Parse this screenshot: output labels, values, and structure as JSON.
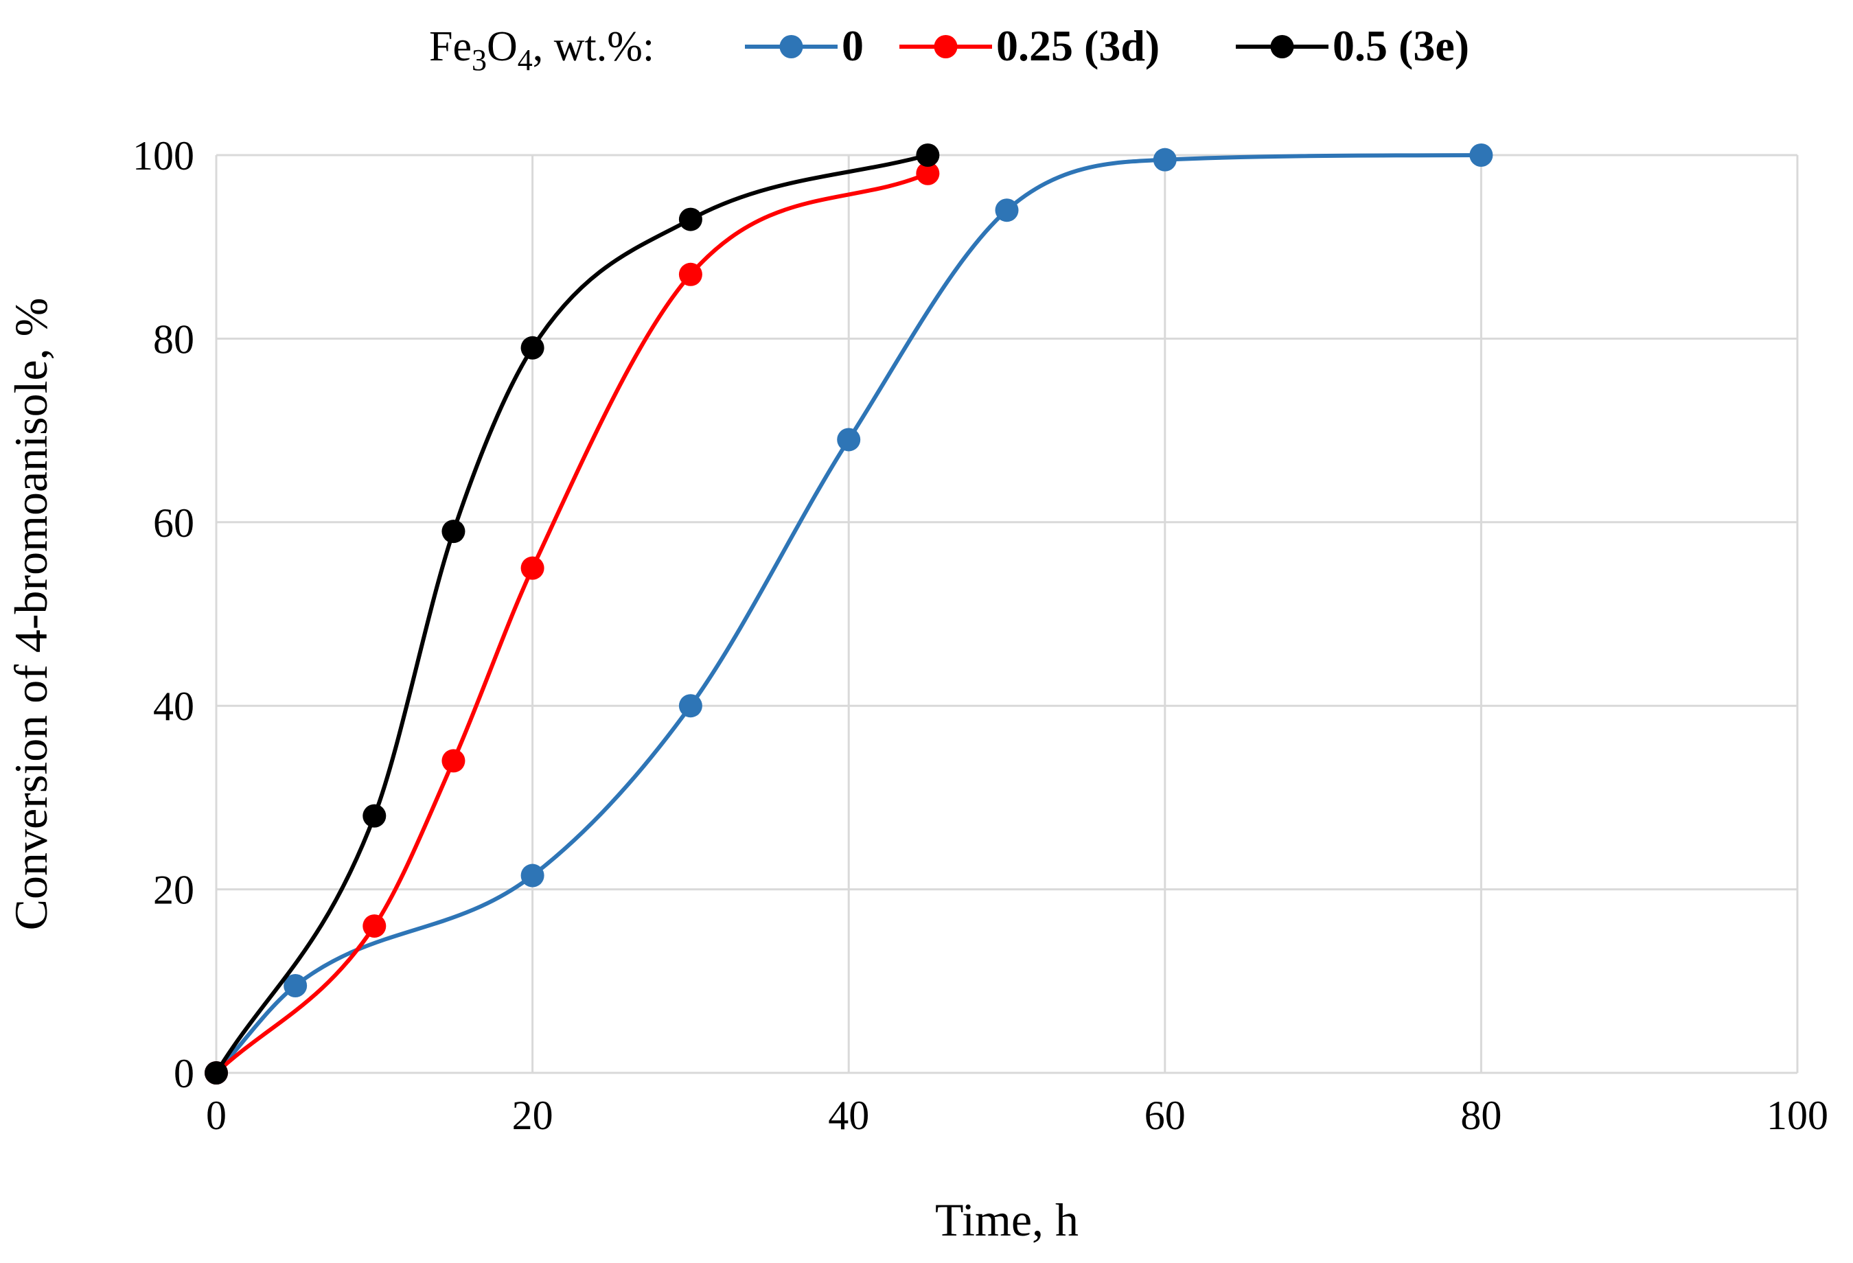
{
  "chart_data": {
    "type": "line",
    "smooth": true,
    "title": "",
    "xlabel": "Time, h",
    "ylabel": "Conversion of 4-bromoanisole, %",
    "xlim": [
      0,
      100
    ],
    "ylim": [
      0,
      100
    ],
    "xticks": [
      "0",
      "20",
      "40",
      "60",
      "80",
      "100"
    ],
    "yticks": [
      "0",
      "20",
      "40",
      "60",
      "80",
      "100"
    ],
    "grid": true,
    "legend": {
      "title_main": "Fe",
      "title_sub1": "3",
      "title_mid": "O",
      "title_sub2": "4",
      "title_rest": ", wt.%:",
      "placement": "top-center"
    },
    "series": [
      {
        "name": "0",
        "color": "#2E75B6",
        "x": [
          0,
          5,
          20,
          30,
          40,
          50,
          60,
          80
        ],
        "y": [
          0,
          9.5,
          21.5,
          40,
          69,
          94,
          99.5,
          100
        ]
      },
      {
        "name": "0.25 (3d)",
        "color": "#FF0000",
        "x": [
          0,
          10,
          15,
          20,
          30,
          45
        ],
        "y": [
          0,
          16,
          34,
          55,
          87,
          98
        ]
      },
      {
        "name": "0.5 (3e)",
        "color": "#000000",
        "x": [
          0,
          10,
          15,
          20,
          30,
          45
        ],
        "y": [
          0,
          28,
          59,
          79,
          93,
          100
        ]
      }
    ]
  }
}
